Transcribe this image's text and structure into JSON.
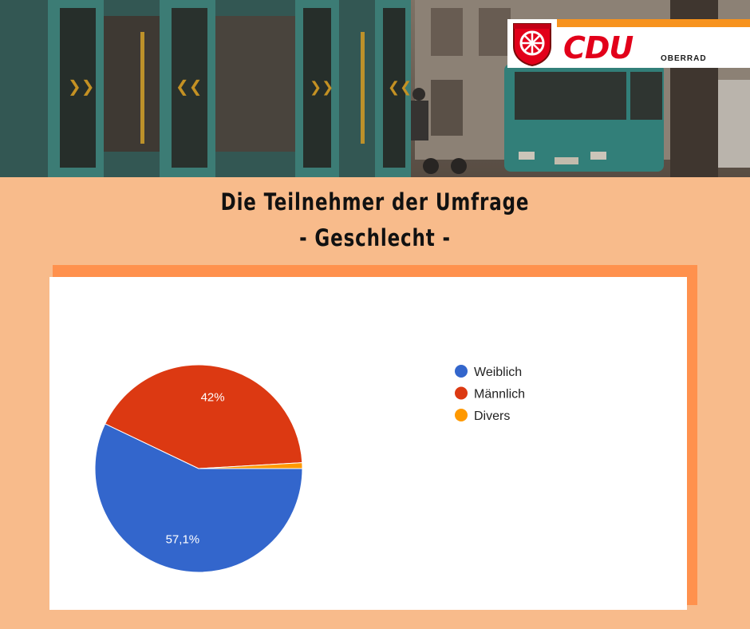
{
  "header": {
    "logo": {
      "brand": "CDU",
      "subtitle": "OBERRAD"
    }
  },
  "title": {
    "line1": "Die Teilnehmer der Umfrage",
    "line2": "- Geschlecht -"
  },
  "colors": {
    "background": "#f8bb8b",
    "card_shadow": "#ff914d",
    "weiblich": "#3366cc",
    "maennlich": "#dc3912",
    "divers": "#ff9900",
    "cdu_red": "#e2001a",
    "cdu_orange": "#f7931e"
  },
  "chart_data": {
    "type": "pie",
    "title": "",
    "categories": [
      "Weiblich",
      "Männlich",
      "Divers"
    ],
    "values": [
      57.1,
      42.0,
      0.9
    ],
    "slice_labels": [
      "57,1%",
      "42%",
      ""
    ],
    "colors": [
      "#3366cc",
      "#dc3912",
      "#ff9900"
    ],
    "legend_placement": "right"
  }
}
